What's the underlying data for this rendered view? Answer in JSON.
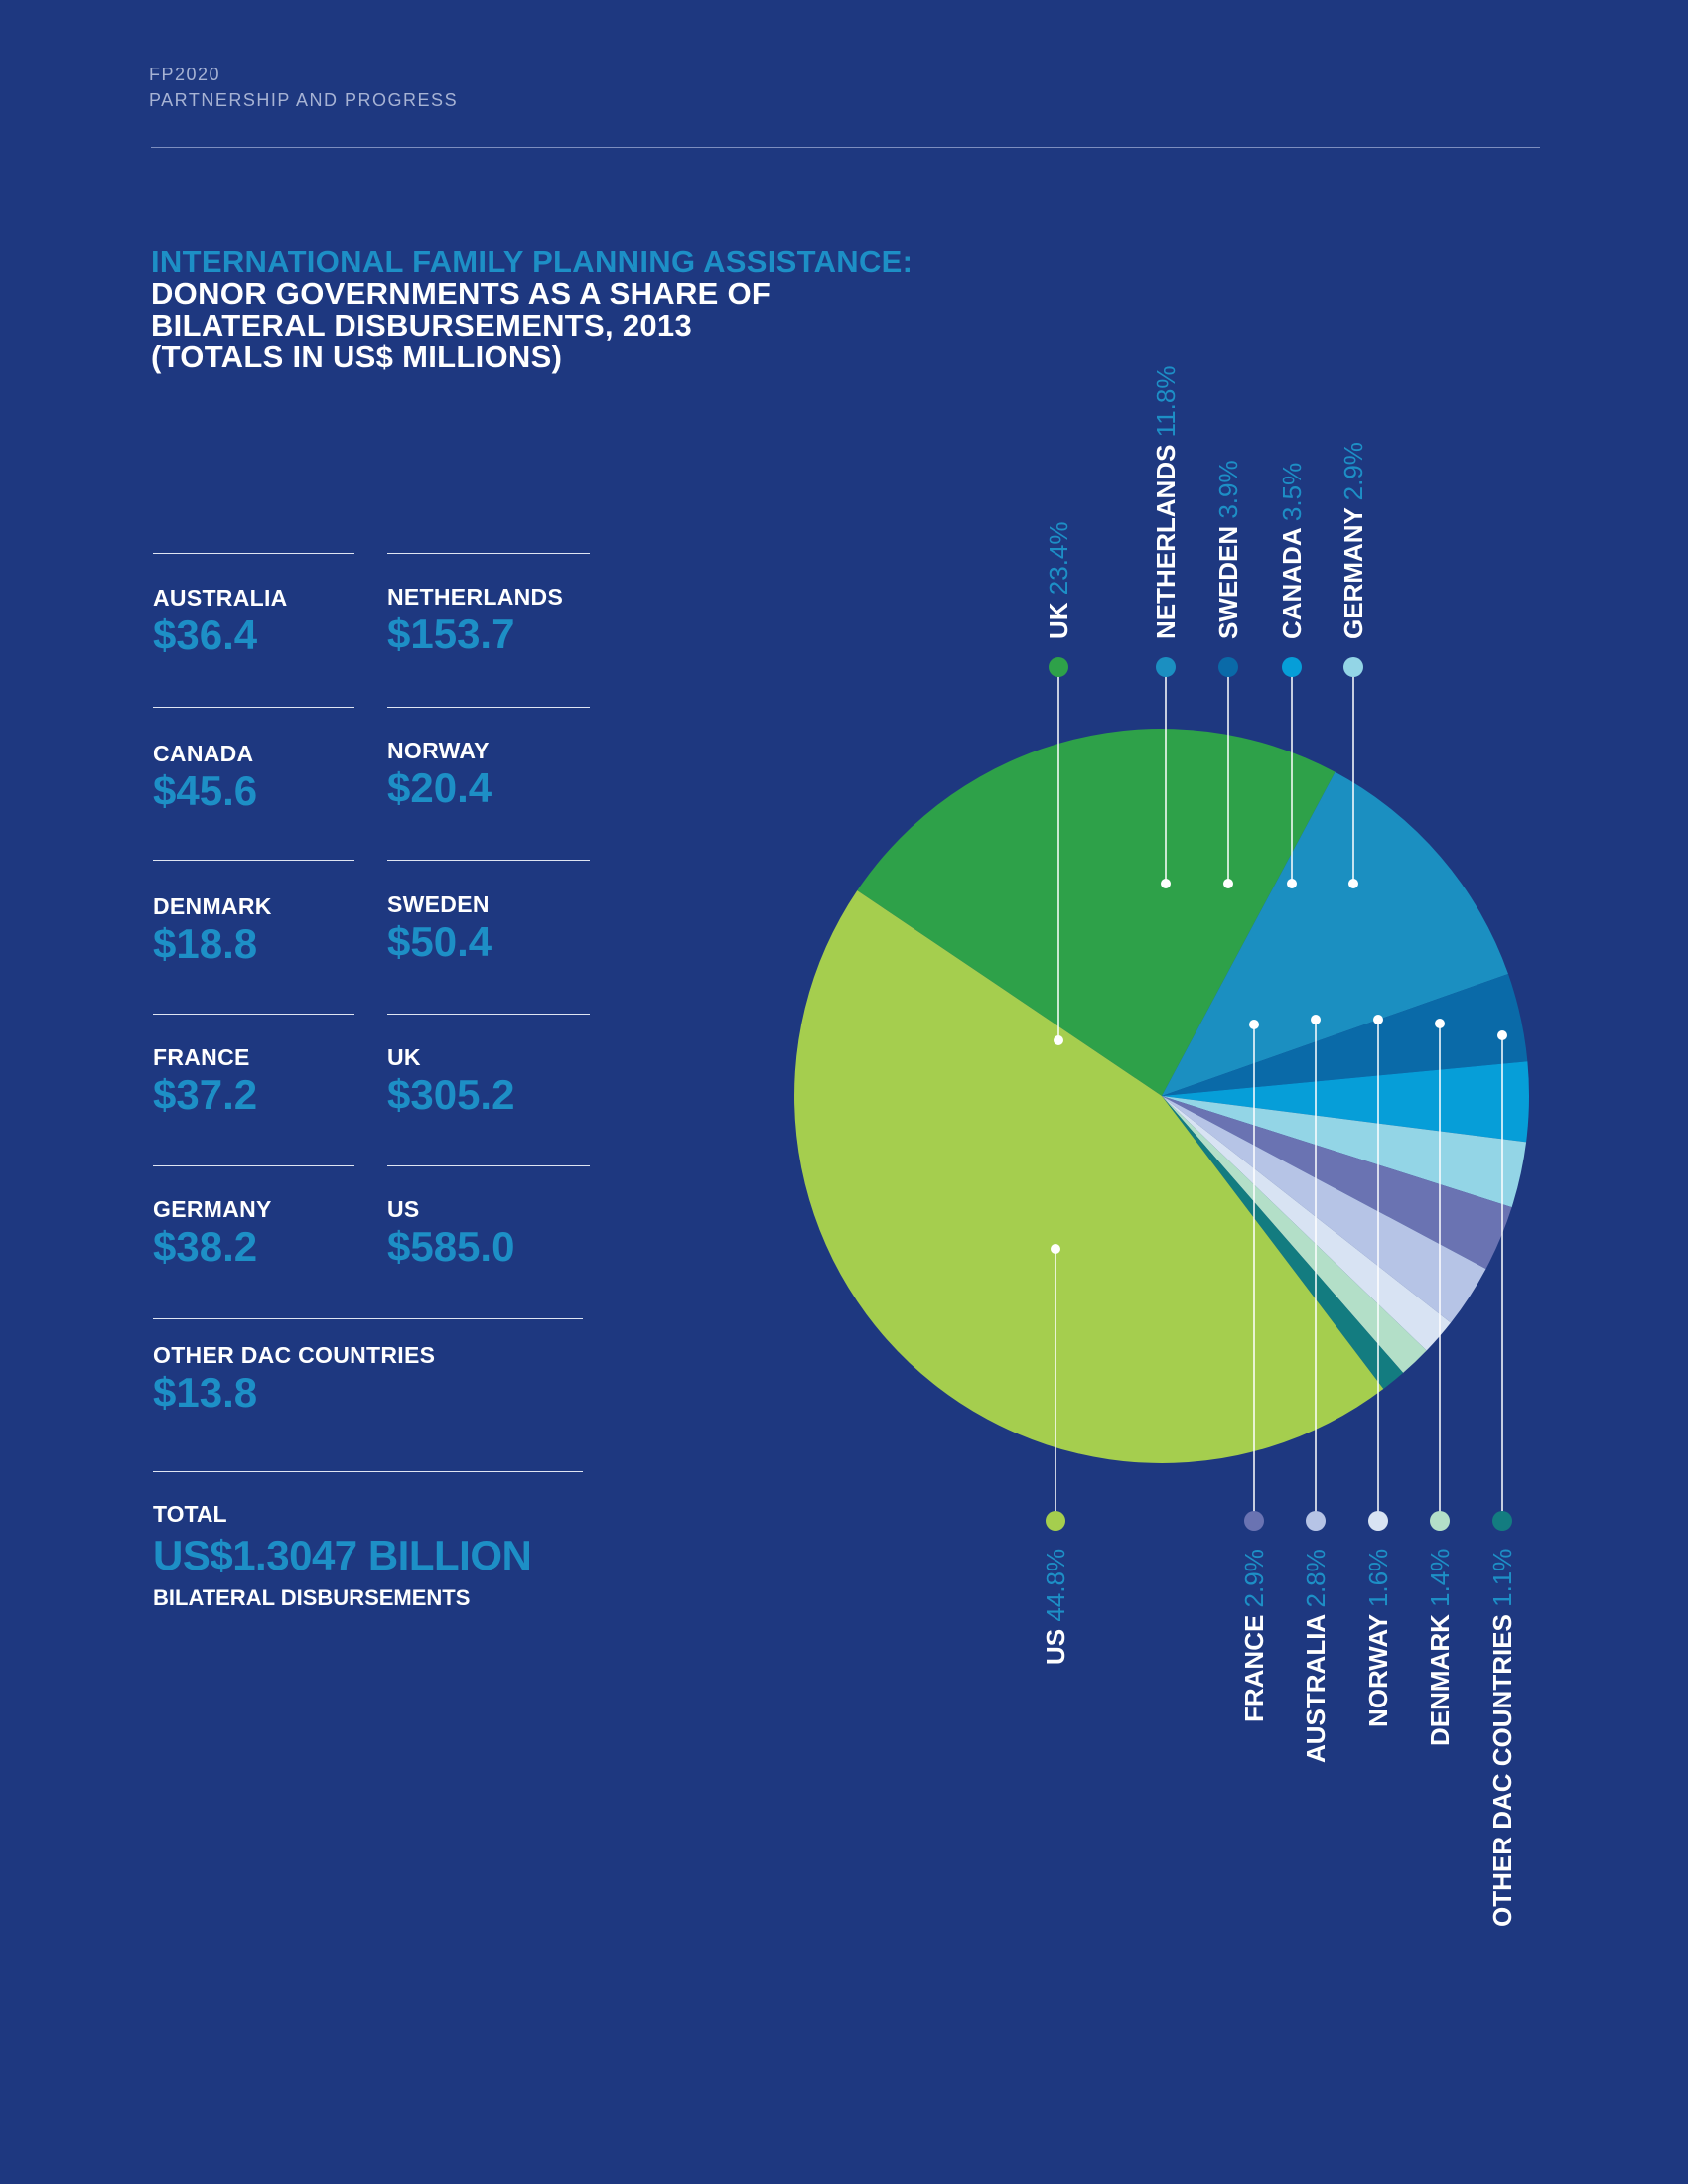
{
  "header": {
    "line1": "FP2020",
    "line2": "PARTNERSHIP AND PROGRESS"
  },
  "title": {
    "line1": "INTERNATIONAL FAMILY PLANNING ASSISTANCE:",
    "line2": "DONOR GOVERNMENTS AS A SHARE OF",
    "line3": "BILATERAL DISBURSEMENTS, 2013",
    "line4": "(TOTALS IN US$ MILLIONS)"
  },
  "donors": [
    {
      "name": "AUSTRALIA",
      "amount": "$36.4"
    },
    {
      "name": "NETHERLANDS",
      "amount": "$153.7"
    },
    {
      "name": "CANADA",
      "amount": "$45.6"
    },
    {
      "name": "NORWAY",
      "amount": "$20.4"
    },
    {
      "name": "DENMARK",
      "amount": "$18.8"
    },
    {
      "name": "SWEDEN",
      "amount": "$50.4"
    },
    {
      "name": "FRANCE",
      "amount": "$37.2"
    },
    {
      "name": "UK",
      "amount": "$305.2"
    },
    {
      "name": "GERMANY",
      "amount": "$38.2"
    },
    {
      "name": "US",
      "amount": "$585.0"
    },
    {
      "name": "OTHER DAC COUNTRIES",
      "amount": "$13.8"
    }
  ],
  "total": {
    "label": "TOTAL",
    "value": "US$1.3047 BILLION",
    "sub": "BILATERAL DISBURSEMENTS"
  },
  "chart_data": {
    "type": "pie",
    "title": "DONOR GOVERNMENTS AS A SHARE OF BILATERAL DISBURSEMENTS, 2013",
    "unit": "%",
    "slices": [
      {
        "name": "UK",
        "percent_label": "23.4%",
        "value": 23.4,
        "color": "#2ea149"
      },
      {
        "name": "NETHERLANDS",
        "percent_label": "11.8%",
        "value": 11.8,
        "color": "#1b8fc1"
      },
      {
        "name": "SWEDEN",
        "percent_label": "3.9%",
        "value": 3.9,
        "color": "#0a6aa8"
      },
      {
        "name": "CANADA",
        "percent_label": "3.5%",
        "value": 3.5,
        "color": "#069ed8"
      },
      {
        "name": "GERMANY",
        "percent_label": "2.9%",
        "value": 2.9,
        "color": "#93d5e6"
      },
      {
        "name": "FRANCE",
        "percent_label": "2.9%",
        "value": 2.9,
        "color": "#6a73b2"
      },
      {
        "name": "AUSTRALIA",
        "percent_label": "2.8%",
        "value": 2.8,
        "color": "#b6c4e6"
      },
      {
        "name": "NORWAY",
        "percent_label": "1.6%",
        "value": 1.6,
        "color": "#d8e3f3"
      },
      {
        "name": "DENMARK",
        "percent_label": "1.4%",
        "value": 1.4,
        "color": "#b3dfc8"
      },
      {
        "name": "OTHER DAC COUNTRIES",
        "percent_label": "1.1%",
        "value": 1.1,
        "color": "#137c80"
      },
      {
        "name": "US",
        "percent_label": "44.8%",
        "value": 44.8,
        "color": "#a5ce4e"
      }
    ]
  }
}
